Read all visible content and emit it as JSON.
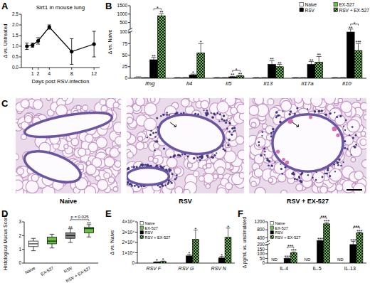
{
  "chart_data": [
    {
      "panel": "A",
      "type": "line",
      "title": "Sirt1 in mouse lung",
      "y_label": "Δ vs. Untreated",
      "x_label": "Days post RSV-infection",
      "x": [
        0,
        1,
        2,
        4,
        8,
        12
      ],
      "values": [
        1.0,
        1.05,
        1.25,
        1.9,
        0.75,
        1.1
      ],
      "errors": [
        0.15,
        0.1,
        0.15,
        0.1,
        0.6,
        0.6
      ],
      "xlim": [
        -1,
        13
      ],
      "xticks": [
        1,
        2,
        4,
        8,
        12
      ],
      "ylim": [
        0,
        2.5
      ],
      "yticks": [
        {
          "value": 0,
          "label": "0.0"
        },
        {
          "value": 0.5,
          "label": "0.5"
        },
        {
          "value": 1,
          "label": "1.0"
        },
        {
          "value": 1.5,
          "label": "1.5"
        },
        {
          "value": 2,
          "label": "2.0"
        },
        {
          "value": 2.5,
          "label": "2.5"
        }
      ],
      "marker": "circle",
      "color": "#000000"
    },
    {
      "panel": "B",
      "type": "bar",
      "y_label": "Δ vs. Naive",
      "categories": [
        "Ifng",
        "Il4",
        "Il5",
        "Il13",
        "Il17a",
        "Il10"
      ],
      "ylim": [
        0,
        1500
      ],
      "yticks": [
        0,
        25,
        50,
        75,
        100,
        500,
        1000,
        1500
      ],
      "legend": "upper right",
      "series": [
        {
          "name": "Naive",
          "color": "#ffffff",
          "values": [
            2,
            1,
            1,
            1,
            1,
            1
          ],
          "errors": [
            1,
            0.5,
            0.5,
            0.5,
            0.5,
            0.5
          ]
        },
        {
          "name": "EX-527",
          "color": "#6cc04a",
          "values": [
            1,
            1,
            1,
            1,
            1,
            1
          ],
          "errors": [
            0.5,
            0.5,
            0.5,
            0.5,
            0.5,
            0.5
          ]
        },
        {
          "name": "RSV",
          "color": "#000000",
          "values": [
            40,
            7,
            3,
            30,
            30,
            100
          ],
          "errors": [
            5,
            2,
            1,
            8,
            6,
            8
          ],
          "sig": [
            "**",
            "*",
            "**",
            "**",
            "**",
            "**"
          ]
        },
        {
          "name": "RSV + EX-527",
          "color": "#6cc04a",
          "marker": "checkered",
          "values": [
            900,
            55,
            5,
            25,
            35,
            60
          ],
          "errors": [
            120,
            20,
            1,
            5,
            12,
            15
          ],
          "sig": [
            "**",
            "*",
            "**",
            "**",
            "**",
            "***"
          ]
        }
      ],
      "comparisons": [
        {
          "category": "Ifng",
          "series": [
            "RSV",
            "RSV + EX-527"
          ],
          "text": "*"
        },
        {
          "category": "Il5",
          "series": [
            "RSV",
            "RSV + EX-527"
          ],
          "text": "*"
        },
        {
          "category": "Il10",
          "series": [
            "RSV",
            "RSV + EX-527"
          ],
          "text": "*"
        }
      ]
    },
    {
      "panel": "C",
      "type": "image",
      "panels": [
        "Naive",
        "RSV",
        "RSV + EX-527"
      ]
    },
    {
      "panel": "D",
      "type": "box",
      "y_label": "Histological Mucus Score",
      "categories": [
        "Naive",
        "EX-527",
        "RSV",
        "RSV + EX-527"
      ],
      "ylim": [
        0,
        3
      ],
      "yticks": [
        0,
        1,
        2,
        3
      ],
      "colors": [
        "#ffffff",
        "#6cc04a",
        "#808080",
        "#6cc04a"
      ],
      "boxes": [
        {
          "min": 0.9,
          "q1": 1.2,
          "median": 1.4,
          "q3": 1.6,
          "max": 1.8
        },
        {
          "min": 1.1,
          "q1": 1.4,
          "median": 1.6,
          "q3": 1.9,
          "max": 2.1
        },
        {
          "min": 1.5,
          "q1": 1.8,
          "median": 2.0,
          "q3": 2.2,
          "max": 2.5
        },
        {
          "min": 1.9,
          "q1": 2.2,
          "median": 2.5,
          "q3": 2.6,
          "max": 2.8
        }
      ],
      "sig": [
        null,
        null,
        "**",
        "**"
      ],
      "comparisons": [
        {
          "categories": [
            "RSV",
            "RSV + EX-527"
          ],
          "text": "p = 0.025"
        }
      ]
    },
    {
      "panel": "E",
      "type": "bar",
      "y_label": "Δ vs. Naive",
      "categories": [
        "RSV F",
        "RSV G",
        "RSV N"
      ],
      "ylim": [
        0,
        40000
      ],
      "yticks": [
        0,
        {
          "value": 10000,
          "label": "1×10⁴"
        },
        {
          "value": 20000,
          "label": "2×10⁴"
        },
        {
          "value": 30000,
          "label": "3×10⁴"
        },
        {
          "value": 40000,
          "label": "4×10⁴"
        }
      ],
      "legend": "upper left",
      "series": [
        {
          "name": "Naive",
          "color": "#ffffff",
          "values": [
            0,
            0,
            0
          ]
        },
        {
          "name": "EX-527",
          "color": "#6cc04a",
          "values": [
            0,
            0,
            0
          ]
        },
        {
          "name": "RSV",
          "color": "#000000",
          "values": [
            1000,
            7000,
            5000
          ],
          "errors": [
            300,
            1500,
            1500
          ],
          "sig": [
            "*",
            "*",
            "*"
          ]
        },
        {
          "name": "RSV + EX-527",
          "color": "#6cc04a",
          "marker": "checkered",
          "values": [
            1500,
            23000,
            25000
          ],
          "errors": [
            500,
            9000,
            9000
          ],
          "sig": [
            "*",
            "*",
            "*"
          ]
        }
      ]
    },
    {
      "panel": "F",
      "type": "bar",
      "y_label": "Δ pg/mL vs. unstimulated",
      "categories": [
        "IL-4",
        "IL-5",
        "IL-13"
      ],
      "ylim": [
        0,
        1200
      ],
      "yticks": [
        0,
        50,
        100,
        150,
        200,
        400,
        800,
        1200
      ],
      "legend": "upper left",
      "series": [
        {
          "name": "Naive",
          "color": "#ffffff",
          "values": [
            null,
            null,
            null
          ],
          "value_labels": [
            "ND",
            "ND",
            "ND"
          ]
        },
        {
          "name": "EX-527",
          "color": "#6cc04a",
          "values": [
            null,
            null,
            null
          ]
        },
        {
          "name": "RSV",
          "color": "#000000",
          "values": [
            50,
            250,
            200
          ],
          "errors": [
            5,
            20,
            10
          ],
          "sig": [
            "***",
            "***",
            "***"
          ]
        },
        {
          "name": "RSV + EX-527",
          "color": "#6cc04a",
          "marker": "checkered",
          "values": [
            110,
            1100,
            640
          ],
          "errors": [
            10,
            60,
            40
          ],
          "sig": [
            "***",
            "***",
            "***"
          ]
        }
      ],
      "comparisons": [
        {
          "category": "IL-4",
          "series": [
            "RSV",
            "RSV + EX-527"
          ],
          "text": "***"
        },
        {
          "category": "IL-5",
          "series": [
            "RSV",
            "RSV + EX-527"
          ],
          "text": "***"
        },
        {
          "category": "IL-13",
          "series": [
            "RSV",
            "RSV + EX-527"
          ],
          "text": "***"
        }
      ]
    }
  ]
}
